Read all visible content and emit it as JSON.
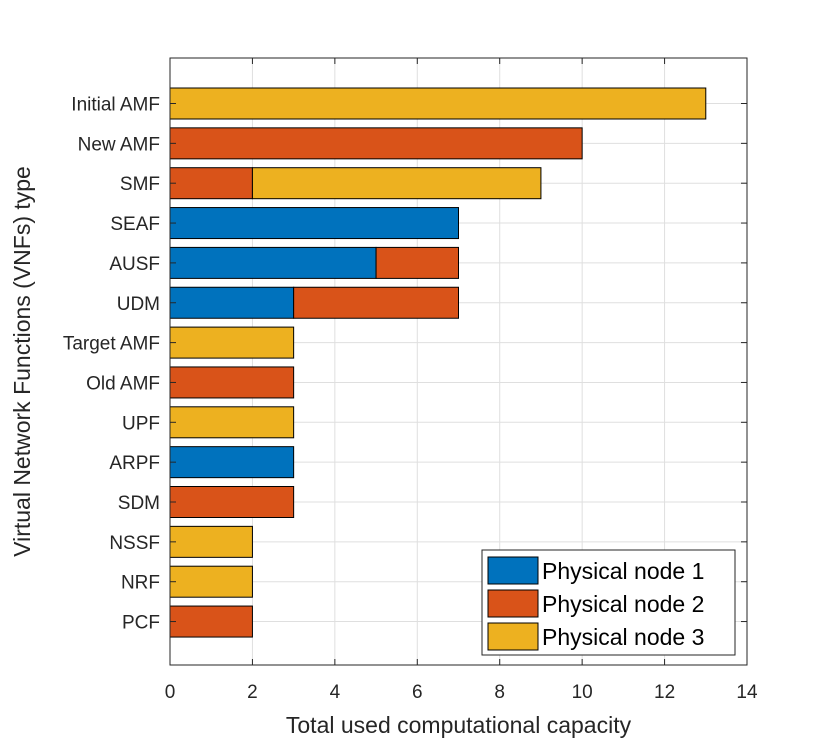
{
  "chart_data": {
    "type": "bar",
    "orientation": "horizontal",
    "stacked": true,
    "title": "",
    "xlabel": "Total used computational capacity",
    "ylabel": "Virtual Network Functions (VNFs) type",
    "xlim": [
      0,
      14
    ],
    "xticks": [
      0,
      2,
      4,
      6,
      8,
      10,
      12,
      14
    ],
    "grid": true,
    "legend_position": "bottom-right",
    "categories": [
      "Initial AMF",
      "New AMF",
      "SMF",
      "SEAF",
      "AUSF",
      "UDM",
      "Target AMF",
      "Old AMF",
      "UPF",
      "ARPF",
      "SDM",
      "NSSF",
      "NRF",
      "PCF"
    ],
    "series": [
      {
        "name": "Physical node 1",
        "color": "#0072BD",
        "values": [
          0,
          0,
          0,
          7,
          5,
          3,
          0,
          0,
          0,
          3,
          0,
          0,
          0,
          0
        ]
      },
      {
        "name": "Physical node 2",
        "color": "#D95319",
        "values": [
          0,
          10,
          2,
          0,
          2,
          4,
          0,
          3,
          0,
          0,
          3,
          0,
          0,
          2
        ]
      },
      {
        "name": "Physical node 3",
        "color": "#EDB120",
        "values": [
          13,
          0,
          7,
          0,
          0,
          0,
          3,
          0,
          3,
          0,
          0,
          2,
          2,
          0
        ]
      }
    ]
  }
}
